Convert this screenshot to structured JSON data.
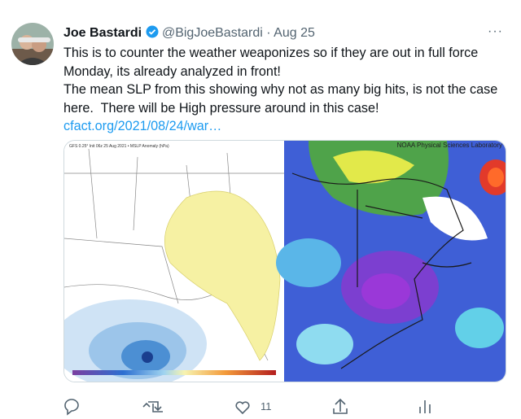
{
  "tweet": {
    "author": {
      "name": "Joe Bastardi",
      "handle": "@BigJoeBastardi",
      "separator": "·",
      "date": "Aug 25"
    },
    "menu": "···",
    "text": [
      "This is to counter the weather weaponizes so if they are out in full force Monday, its already analyzed in front!",
      "The mean SLP from this showing why not as many big hits, is not the case here.  There will be High pressure around in this case!"
    ],
    "link": "cfact.org/2021/08/24/war…",
    "media": {
      "left_caption": "GFS 0.25° Init 06z 25 Aug 2021 • MSLP Anomaly (hPa)",
      "right_caption": "NOAA Physical Sciences Laboratory"
    },
    "stats": {
      "likes": "11"
    }
  }
}
